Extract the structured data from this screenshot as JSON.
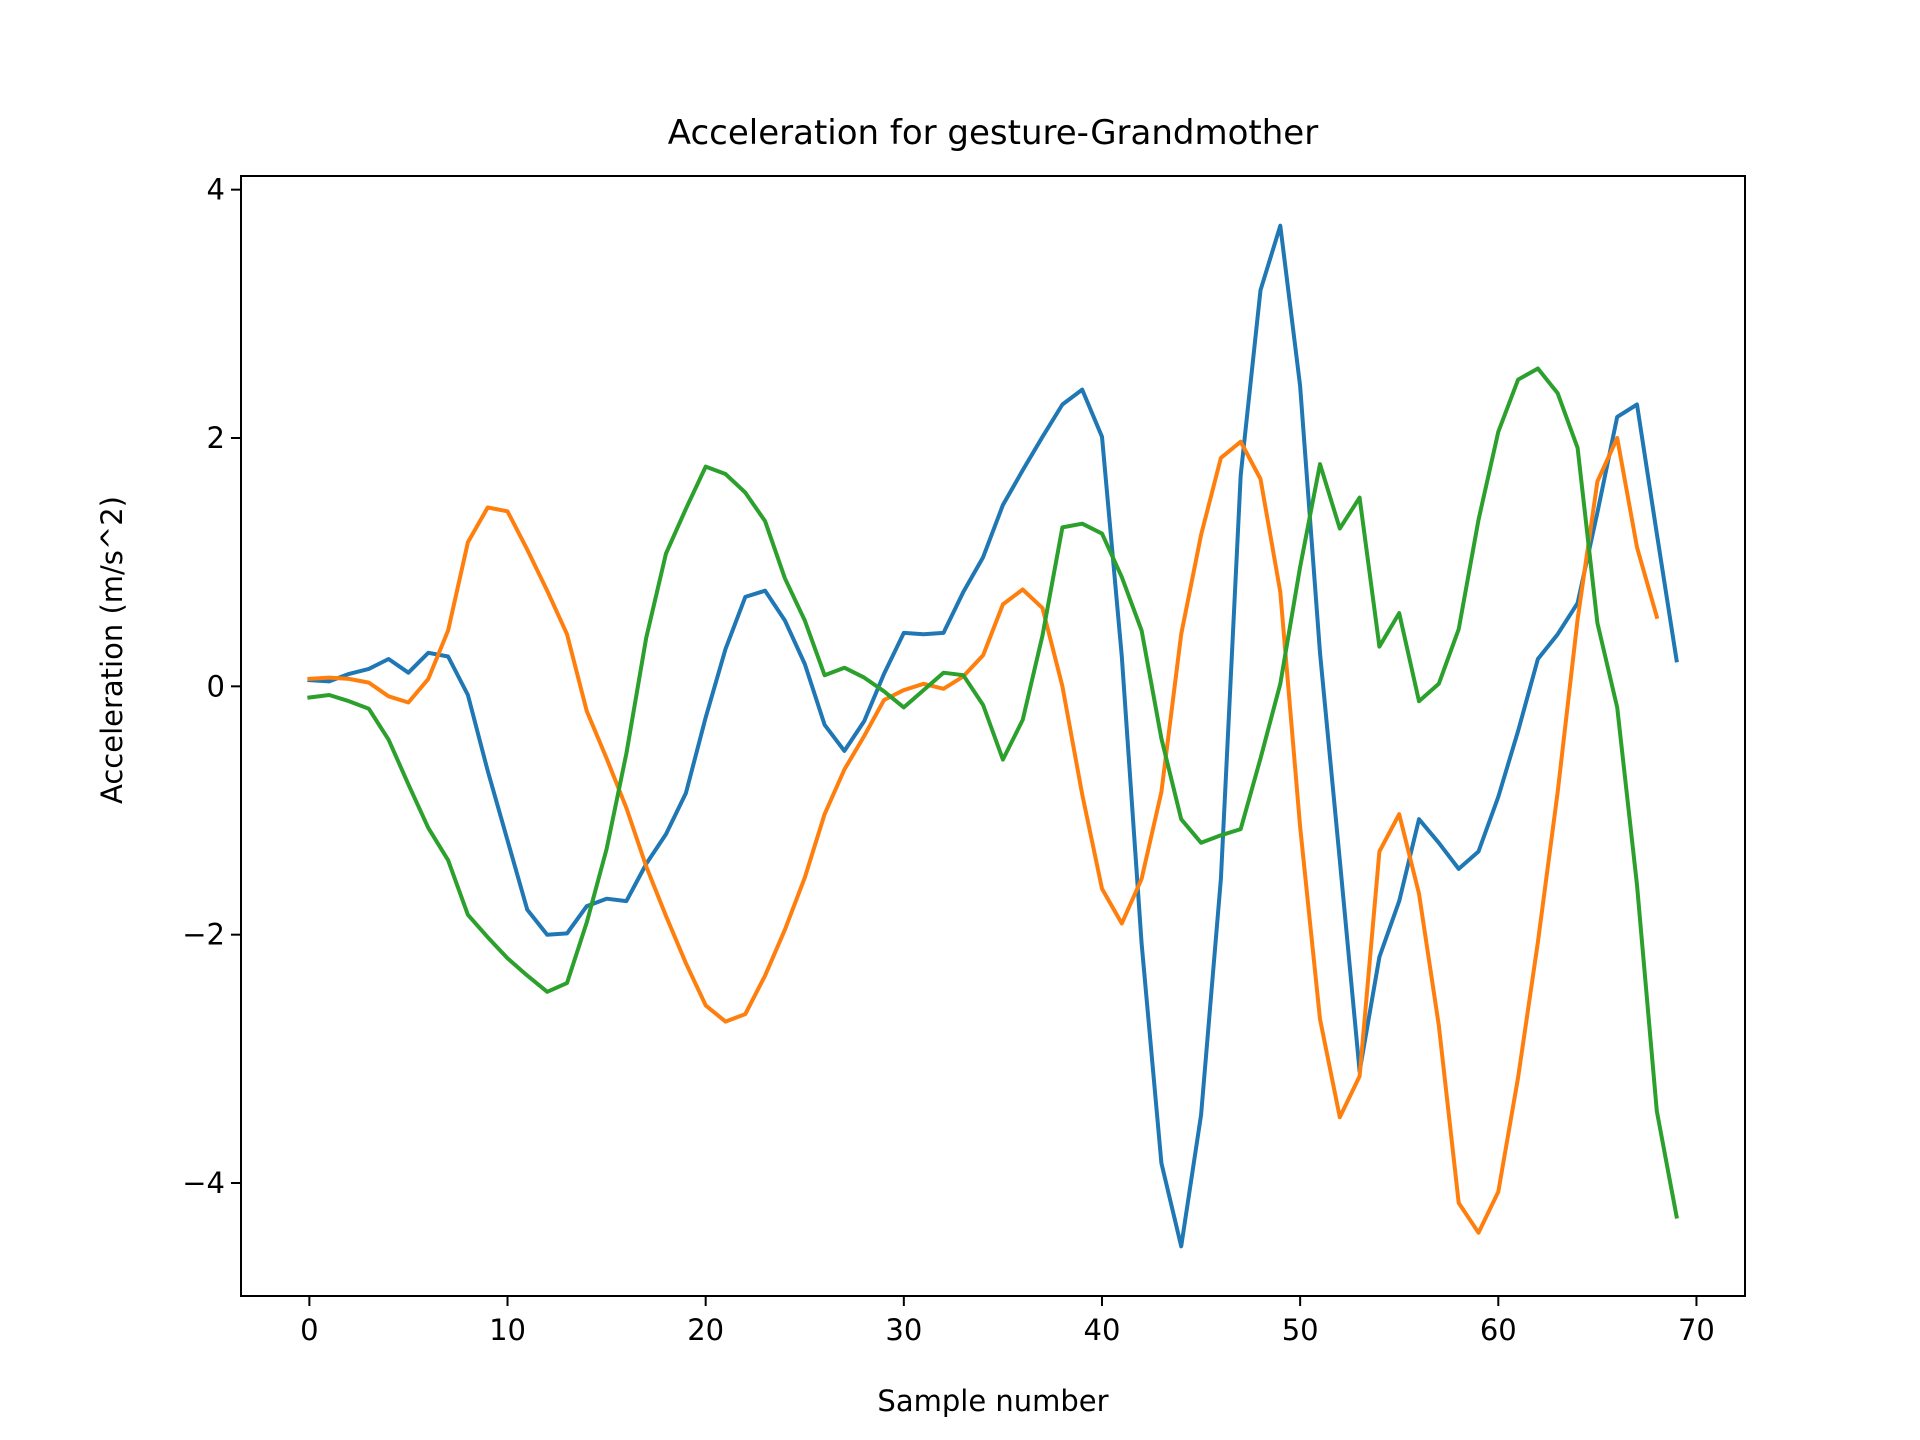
{
  "chart_data": {
    "type": "line",
    "title": "Acceleration for gesture-Grandmother",
    "xlabel": "Sample number",
    "ylabel": "Acceleration (m/s^2)",
    "xlim": [
      -3.45,
      72.45
    ],
    "ylim": [
      -4.91,
      4.11
    ],
    "xticks": [
      0,
      10,
      20,
      30,
      40,
      50,
      60,
      70
    ],
    "yticks": [
      -4,
      -2,
      0,
      2,
      4
    ],
    "xtick_labels": [
      "0",
      "10",
      "20",
      "30",
      "40",
      "50",
      "60",
      "70"
    ],
    "ytick_labels": [
      "−4",
      "−2",
      "0",
      "2",
      "4"
    ],
    "grid": false,
    "legend": "none",
    "series": [
      {
        "color": "#1f77b4",
        "values": [
          0.05,
          0.04,
          0.1,
          0.14,
          0.22,
          0.11,
          0.27,
          0.24,
          -0.07,
          -0.68,
          -1.24,
          -1.8,
          -2.0,
          -1.99,
          -1.77,
          -1.71,
          -1.73,
          -1.43,
          -1.19,
          -0.86,
          -0.25,
          0.3,
          0.72,
          0.77,
          0.53,
          0.18,
          -0.31,
          -0.52,
          -0.28,
          0.1,
          0.43,
          0.42,
          0.43,
          0.76,
          1.04,
          1.46,
          1.74,
          2.01,
          2.27,
          2.39,
          2.01,
          0.24,
          -2.07,
          -3.84,
          -4.51,
          -3.45,
          -1.55,
          1.7,
          3.19,
          3.71,
          2.42,
          0.27,
          -1.4,
          -3.1,
          -2.18,
          -1.73,
          -1.07,
          -1.26,
          -1.47,
          -1.33,
          -0.89,
          -0.36,
          0.22,
          0.42,
          0.67,
          1.4,
          2.17,
          2.27,
          1.23,
          0.21
        ]
      },
      {
        "color": "#ff7f0e",
        "values": [
          0.06,
          0.07,
          0.06,
          0.03,
          -0.08,
          -0.13,
          0.06,
          0.45,
          1.16,
          1.44,
          1.41,
          1.1,
          0.77,
          0.42,
          -0.2,
          -0.58,
          -0.98,
          -1.45,
          -1.85,
          -2.23,
          -2.57,
          -2.7,
          -2.64,
          -2.33,
          -1.96,
          -1.54,
          -1.03,
          -0.67,
          -0.4,
          -0.11,
          -0.03,
          0.02,
          -0.02,
          0.08,
          0.25,
          0.66,
          0.78,
          0.63,
          0.0,
          -0.87,
          -1.63,
          -1.91,
          -1.55,
          -0.85,
          0.42,
          1.22,
          1.84,
          1.97,
          1.67,
          0.76,
          -1.13,
          -2.68,
          -3.47,
          -3.14,
          -1.33,
          -1.03,
          -1.67,
          -2.73,
          -4.16,
          -4.4,
          -4.07,
          -3.15,
          -2.06,
          -0.85,
          0.54,
          1.65,
          2.0,
          1.12,
          0.56
        ]
      },
      {
        "color": "#2ca02c",
        "values": [
          -0.09,
          -0.07,
          -0.12,
          -0.18,
          -0.43,
          -0.79,
          -1.14,
          -1.4,
          -1.84,
          -2.02,
          -2.19,
          -2.33,
          -2.46,
          -2.39,
          -1.9,
          -1.31,
          -0.54,
          0.39,
          1.07,
          1.43,
          1.77,
          1.71,
          1.56,
          1.33,
          0.87,
          0.53,
          0.09,
          0.15,
          0.07,
          -0.04,
          -0.17,
          -0.03,
          0.11,
          0.09,
          -0.15,
          -0.59,
          -0.27,
          0.41,
          1.28,
          1.31,
          1.23,
          0.88,
          0.45,
          -0.42,
          -1.07,
          -1.26,
          -1.2,
          -1.15,
          -0.58,
          0.02,
          0.96,
          1.79,
          1.27,
          1.52,
          0.32,
          0.59,
          -0.12,
          0.02,
          0.46,
          1.34,
          2.05,
          2.47,
          2.56,
          2.36,
          1.92,
          0.51,
          -0.17,
          -1.6,
          -3.42,
          -4.27
        ]
      }
    ]
  }
}
